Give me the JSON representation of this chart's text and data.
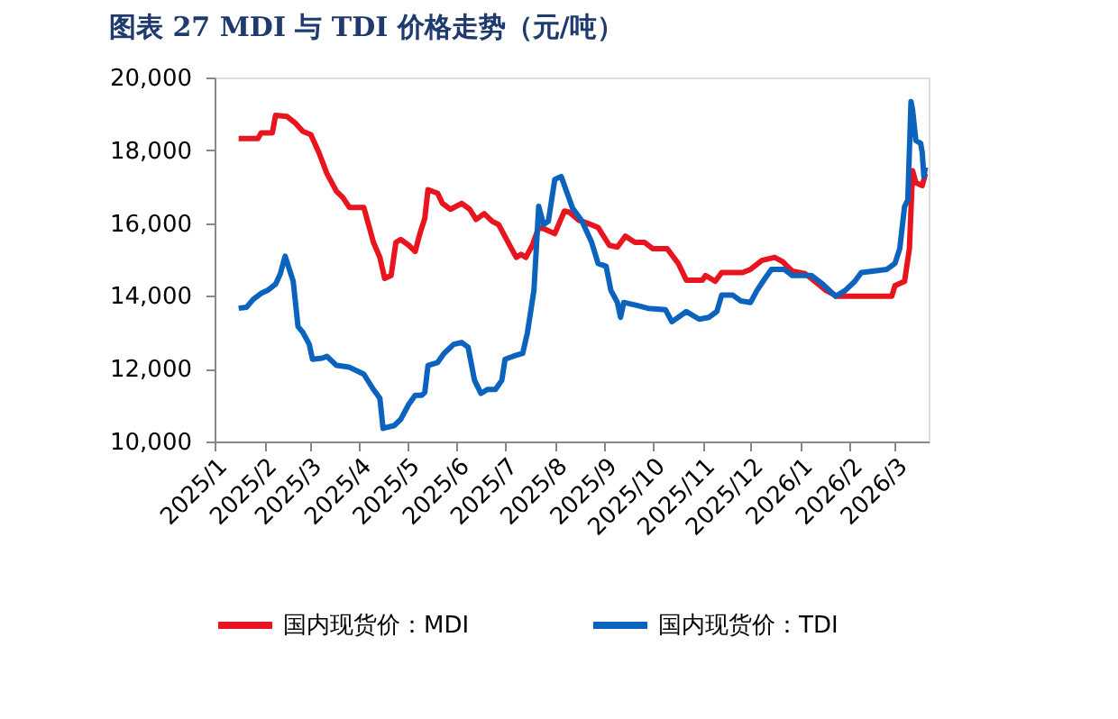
{
  "chart_data": {
    "type": "line",
    "title": "图表 27   MDI 与 TDI 价格走势（元/吨）",
    "x": [
      "2025-01-16",
      "2025-01-28",
      "2025-01-30",
      "2025-02-06",
      "2025-02-08",
      "2025-02-15",
      "2025-02-20",
      "2025-02-25",
      "2025-03-02",
      "2025-03-07",
      "2025-03-12",
      "2025-03-18",
      "2025-03-22",
      "2025-03-26",
      "2025-04-04",
      "2025-04-10",
      "2025-04-14",
      "2025-04-17",
      "2025-04-21",
      "2025-04-24",
      "2025-04-27",
      "2025-05-02",
      "2025-05-06",
      "2025-05-09",
      "2025-05-12",
      "2025-05-14",
      "2025-05-20",
      "2025-05-23",
      "2025-05-28",
      "2025-06-04",
      "2025-06-09",
      "2025-06-13",
      "2025-06-18",
      "2025-06-23",
      "2025-06-27",
      "2025-07-05",
      "2025-07-08",
      "2025-07-11",
      "2025-07-14",
      "2025-07-18",
      "2025-07-22",
      "2025-07-26",
      "2025-08-01",
      "2025-08-07",
      "2025-08-10",
      "2025-08-16",
      "2025-08-23",
      "2025-08-28",
      "2025-09-04",
      "2025-09-09",
      "2025-09-14",
      "2025-09-20",
      "2025-09-26",
      "2025-10-01",
      "2025-10-10",
      "2025-10-17",
      "2025-10-22",
      "2025-11-01",
      "2025-11-03",
      "2025-11-09",
      "2025-11-13",
      "2025-11-26",
      "2025-12-01",
      "2025-12-08",
      "2025-12-16",
      "2025-12-21",
      "2025-12-27",
      "2026-01-04",
      "2026-01-10",
      "2026-01-17",
      "2026-01-24",
      "2026-02-27",
      "2026-03-01",
      "2026-03-07",
      "2026-03-10",
      "2026-03-12",
      "2026-03-14",
      "2026-03-18",
      "2026-03-20"
    ],
    "series": [
      {
        "name": "国内现货价：MDI",
        "color": "#e8151f",
        "values": [
          18320,
          18320,
          18480,
          18480,
          18960,
          18930,
          18760,
          18520,
          18430,
          17940,
          17360,
          16870,
          16700,
          16430,
          16430,
          15470,
          15060,
          14480,
          14560,
          15470,
          15550,
          15390,
          15220,
          15720,
          16130,
          16920,
          16820,
          16540,
          16380,
          16540,
          16380,
          16100,
          16260,
          16050,
          15960,
          15300,
          15060,
          15140,
          15060,
          15390,
          15880,
          15830,
          15710,
          16330,
          16300,
          16080,
          15970,
          15880,
          15390,
          15340,
          15640,
          15470,
          15470,
          15300,
          15300,
          14890,
          14430,
          14430,
          14560,
          14400,
          14640,
          14640,
          14730,
          14970,
          15060,
          14940,
          14680,
          14610,
          14400,
          14150,
          13990,
          13990,
          14280,
          14400,
          15300,
          17440,
          17110,
          17030,
          17360
        ]
      },
      {
        "name": "国内现货价：TDI",
        "color": "#0b63be",
        "x": [
          "2025-01-16",
          "2025-01-21",
          "2025-01-25",
          "2025-01-30",
          "2025-02-03",
          "2025-02-08",
          "2025-02-11",
          "2025-02-13",
          "2025-02-14",
          "2025-02-16",
          "2025-02-19",
          "2025-02-22",
          "2025-02-25",
          "2025-03-01",
          "2025-03-03",
          "2025-03-09",
          "2025-03-12",
          "2025-03-18",
          "2025-03-26",
          "2025-04-04",
          "2025-04-10",
          "2025-04-14",
          "2025-04-16",
          "2025-04-23",
          "2025-04-27",
          "2025-05-02",
          "2025-05-06",
          "2025-05-10",
          "2025-05-12",
          "2025-05-14",
          "2025-05-20",
          "2025-05-24",
          "2025-05-30",
          "2025-06-04",
          "2025-06-08",
          "2025-06-12",
          "2025-06-16",
          "2025-06-20",
          "2025-06-25",
          "2025-06-29",
          "2025-07-01",
          "2025-07-06",
          "2025-07-12",
          "2025-07-15",
          "2025-07-19",
          "2025-07-22",
          "2025-07-25",
          "2025-07-28",
          "2025-08-01",
          "2025-08-05",
          "2025-08-09",
          "2025-08-12",
          "2025-08-18",
          "2025-08-24",
          "2025-08-28",
          "2025-09-02",
          "2025-09-05",
          "2025-09-09",
          "2025-09-11",
          "2025-09-13",
          "2025-09-21",
          "2025-09-28",
          "2025-10-09",
          "2025-10-13",
          "2025-10-22",
          "2025-10-30",
          "2025-11-05",
          "2025-11-10",
          "2025-11-13",
          "2025-11-20",
          "2025-11-25",
          "2025-12-01",
          "2025-12-05",
          "2025-12-10",
          "2025-12-14",
          "2025-12-22",
          "2025-12-27",
          "2026-01-08",
          "2026-01-15",
          "2026-01-23",
          "2026-01-29",
          "2026-02-04",
          "2026-02-08",
          "2026-02-15",
          "2026-02-24",
          "2026-03-01",
          "2026-03-04",
          "2026-03-07",
          "2026-03-09",
          "2026-03-11",
          "2026-03-12",
          "2026-03-14",
          "2026-03-17",
          "2026-03-18",
          "2026-03-19",
          "2026-03-20"
        ],
        "values": [
          13660,
          13690,
          13900,
          14070,
          14150,
          14320,
          14610,
          14940,
          15090,
          14810,
          14400,
          13160,
          13000,
          12670,
          12260,
          12290,
          12340,
          12090,
          12040,
          11850,
          11430,
          11190,
          10360,
          10440,
          10610,
          11020,
          11270,
          11270,
          11350,
          12090,
          12170,
          12420,
          12670,
          12720,
          12590,
          11680,
          11320,
          11430,
          11430,
          11680,
          12260,
          12340,
          12420,
          13000,
          14150,
          16460,
          15960,
          16050,
          17200,
          17280,
          16790,
          16420,
          16050,
          15470,
          14890,
          14810,
          14150,
          13820,
          13410,
          13820,
          13740,
          13660,
          13620,
          13290,
          13570,
          13360,
          13410,
          13570,
          14020,
          14020,
          13860,
          13820,
          14150,
          14480,
          14730,
          14730,
          14560,
          14560,
          14320,
          13990,
          14150,
          14400,
          14640,
          14680,
          14730,
          14890,
          15300,
          16460,
          16630,
          19340,
          19100,
          18270,
          18190,
          17940,
          17280,
          17530
        ]
      }
    ],
    "xlim": [
      "2025-01-01",
      "2026-03-22"
    ],
    "xticks": [
      {
        "value": "2025-01-01",
        "label": "2025/1"
      },
      {
        "value": "2025-02-01",
        "label": "2025/2"
      },
      {
        "value": "2025-03-01",
        "label": "2025/3"
      },
      {
        "value": "2025-04-01",
        "label": "2025/4"
      },
      {
        "value": "2025-05-01",
        "label": "2025/5"
      },
      {
        "value": "2025-06-01",
        "label": "2025/6"
      },
      {
        "value": "2025-07-01",
        "label": "2025/7"
      },
      {
        "value": "2025-08-01",
        "label": "2025/8"
      },
      {
        "value": "2025-09-01",
        "label": "2025/9"
      },
      {
        "value": "2025-10-01",
        "label": "2025/10"
      },
      {
        "value": "2025-11-01",
        "label": "2025/11"
      },
      {
        "value": "2025-12-01",
        "label": "2025/12"
      },
      {
        "value": "2026-01-01",
        "label": "2026/1"
      },
      {
        "value": "2026-02-01",
        "label": "2026/2"
      },
      {
        "value": "2026-03-01",
        "label": "2026/3"
      }
    ],
    "ylim": [
      10000,
      20000
    ],
    "yticks": [
      {
        "value": 10000,
        "label": "10,000"
      },
      {
        "value": 12000,
        "label": "12,000"
      },
      {
        "value": 14000,
        "label": "14,000"
      },
      {
        "value": 16000,
        "label": "16,000"
      },
      {
        "value": 18000,
        "label": "18,000"
      },
      {
        "value": 20000,
        "label": "20,000"
      }
    ],
    "grid": false,
    "legend": "bottom",
    "marker": "none",
    "line_style": "solid"
  }
}
